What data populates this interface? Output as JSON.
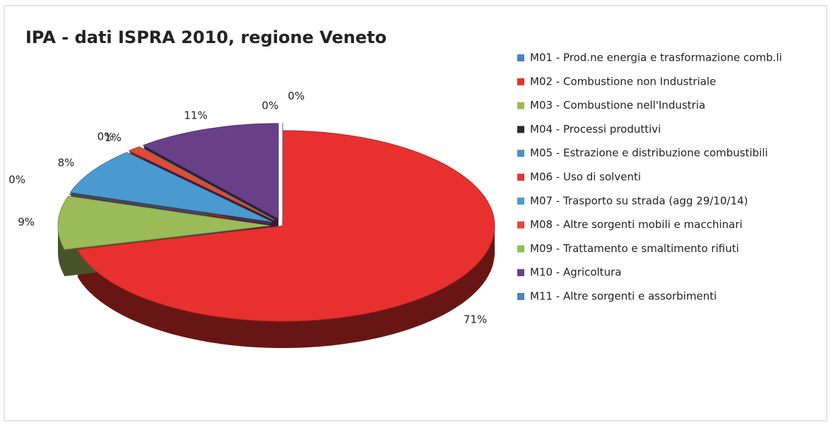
{
  "chart_data": {
    "type": "pie",
    "title": "IPA - dati ISPRA 2010, regione Veneto",
    "categories": [
      "M01 - Prod.ne energia e trasformazione comb.li",
      "M02 - Combustione non Industriale",
      "M03 - Combustione nell'Industria",
      "M04 - Processi produttivi",
      "M05 - Estrazione e distribuzione combustibili",
      "M06 - Uso di solventi",
      "M07 - Trasporto su strada (agg 29/10/14)",
      "M08 - Altre sorgenti mobili e macchinari",
      "M09 - Trattamento e smaltimento rifiuti",
      "M10 - Agricoltura",
      "M11 - Altre sorgenti e assorbimenti"
    ],
    "values": [
      0,
      71,
      9,
      0,
      0,
      0,
      8,
      1,
      0,
      11,
      0
    ],
    "value_labels": [
      "0%",
      "71%",
      "9%",
      "0%",
      null,
      null,
      "8%",
      "1%",
      "0%",
      "11%",
      "0%"
    ],
    "colors": [
      "#4f81bd",
      "#e8312f",
      "#9bbb59",
      "#2c2c2c",
      "#4f8fc0",
      "#e03a35",
      "#4a9ad0",
      "#e04a3a",
      "#8cc34a",
      "#6a3f8a",
      "#4f81bd"
    ],
    "legend": "right"
  }
}
